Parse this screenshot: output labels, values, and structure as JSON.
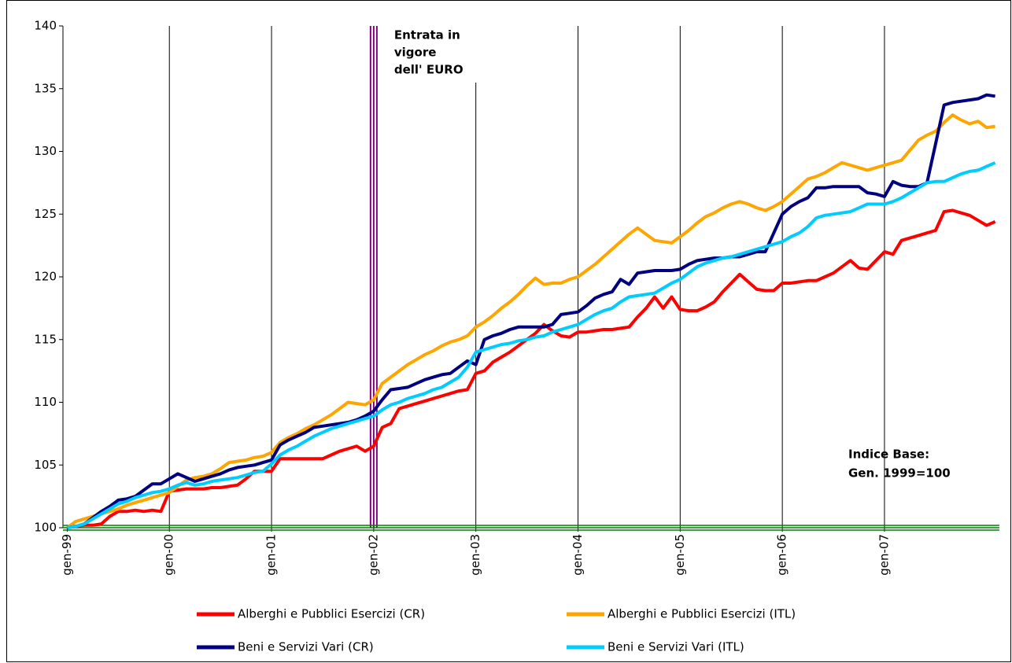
{
  "chart_data": {
    "type": "line",
    "categories": [
      "gen-99",
      null,
      null,
      null,
      null,
      null,
      null,
      null,
      null,
      null,
      null,
      null,
      "gen-00",
      null,
      null,
      null,
      null,
      null,
      null,
      null,
      null,
      null,
      null,
      null,
      "gen-01",
      null,
      null,
      null,
      null,
      null,
      null,
      null,
      null,
      null,
      null,
      null,
      "gen-02",
      null,
      null,
      null,
      null,
      null,
      null,
      null,
      null,
      null,
      null,
      null,
      "gen-03",
      null,
      null,
      null,
      null,
      null,
      null,
      null,
      null,
      null,
      null,
      null,
      "gen-04",
      null,
      null,
      null,
      null,
      null,
      null,
      null,
      null,
      null,
      null,
      null,
      "gen-05",
      null,
      null,
      null,
      null,
      null,
      null,
      null,
      null,
      null,
      null,
      null,
      "gen-06",
      null,
      null,
      null,
      null,
      null,
      null,
      null,
      null,
      null,
      null,
      null,
      "gen-07",
      null,
      null,
      null,
      null,
      null,
      null,
      null,
      null,
      null,
      null,
      null,
      null,
      null
    ],
    "series": [
      {
        "name": "Alberghi e Pubblici Esercizi (CR)",
        "color": "#ff0000",
        "values": [
          100,
          100.1,
          100.2,
          100.2,
          100.3,
          100.9,
          101.3,
          101.3,
          101.4,
          101.3,
          101.4,
          101.3,
          102.9,
          103,
          103.1,
          103.1,
          103.1,
          103.2,
          103.2,
          103.3,
          103.4,
          103.9,
          104.5,
          104.5,
          104.5,
          105.5,
          105.5,
          105.5,
          105.5,
          105.5,
          105.5,
          105.8,
          106.1,
          106.3,
          106.5,
          106.1,
          106.5,
          108,
          108.3,
          109.5,
          109.7,
          109.9,
          110.1,
          110.3,
          110.5,
          110.7,
          110.9,
          111,
          112.3,
          112.5,
          113.2,
          113.6,
          114,
          114.5,
          115,
          115.5,
          116.2,
          115.7,
          115.3,
          115.2,
          115.6,
          115.6,
          115.7,
          115.8,
          115.8,
          115.9,
          116,
          116.8,
          117.5,
          118.4,
          117.5,
          118.4,
          117.4,
          117.3,
          117.3,
          117.6,
          118,
          118.8,
          119.5,
          120.2,
          119.6,
          119,
          118.9,
          118.9,
          119.5,
          119.5,
          119.6,
          119.7,
          119.7,
          120,
          120.3,
          120.8,
          121.3,
          120.7,
          120.6,
          121.3,
          122,
          121.8,
          122.9,
          123.1,
          123.3,
          123.5,
          123.7,
          125.2,
          125.3,
          125.1,
          124.9,
          124.5,
          124.1,
          124.4
        ]
      },
      {
        "name": "Alberghi e Pubblici Esercizi (ITL)",
        "color": "#ffa500",
        "values": [
          100,
          100.5,
          100.7,
          100.9,
          101.1,
          101.3,
          101.5,
          101.8,
          102,
          102.2,
          102.4,
          102.6,
          102.8,
          103.3,
          103.8,
          104,
          104.1,
          104.3,
          104.7,
          105.2,
          105.3,
          105.4,
          105.6,
          105.7,
          106,
          106.8,
          107.2,
          107.5,
          107.9,
          108.2,
          108.6,
          109,
          109.5,
          110,
          109.9,
          109.8,
          110.2,
          111.5,
          112,
          112.5,
          113,
          113.4,
          113.8,
          114.1,
          114.5,
          114.8,
          115,
          115.3,
          116,
          116.4,
          116.9,
          117.5,
          118,
          118.6,
          119.3,
          119.9,
          119.4,
          119.5,
          119.5,
          119.8,
          120,
          120.5,
          121,
          121.6,
          122.2,
          122.8,
          123.4,
          123.9,
          123.4,
          122.9,
          122.8,
          122.7,
          123.2,
          123.7,
          124.3,
          124.8,
          125.1,
          125.5,
          125.8,
          126,
          125.8,
          125.5,
          125.3,
          125.6,
          126,
          126.6,
          127.2,
          127.8,
          128,
          128.3,
          128.7,
          129.1,
          128.9,
          128.7,
          128.5,
          128.7,
          128.9,
          129.1,
          129.3,
          130.1,
          130.9,
          131.3,
          131.6,
          132.3,
          132.9,
          132.5,
          132.2,
          132.4,
          131.9,
          132
        ]
      },
      {
        "name": "Beni e Servizi Vari (CR)",
        "color": "#000080",
        "values": [
          100,
          100.1,
          100.3,
          100.8,
          101.3,
          101.7,
          102.2,
          102.3,
          102.5,
          103,
          103.5,
          103.5,
          103.9,
          104.3,
          104,
          103.7,
          103.9,
          104.1,
          104.3,
          104.6,
          104.8,
          104.9,
          105,
          105.2,
          105.4,
          106.6,
          107,
          107.3,
          107.6,
          108,
          108.1,
          108.2,
          108.3,
          108.4,
          108.6,
          108.9,
          109.3,
          110.2,
          111,
          111.1,
          111.2,
          111.5,
          111.8,
          112,
          112.2,
          112.3,
          112.8,
          113.3,
          113,
          115,
          115.3,
          115.5,
          115.8,
          116,
          116,
          116,
          116,
          116.2,
          117,
          117.1,
          117.2,
          117.7,
          118.3,
          118.6,
          118.8,
          119.8,
          119.4,
          120.3,
          120.4,
          120.5,
          120.5,
          120.5,
          120.6,
          121,
          121.3,
          121.4,
          121.5,
          121.5,
          121.6,
          121.6,
          121.8,
          122,
          122,
          123.5,
          125,
          125.6,
          126,
          126.3,
          127.1,
          127.1,
          127.2,
          127.2,
          127.2,
          127.2,
          126.7,
          126.6,
          126.4,
          127.6,
          127.3,
          127.2,
          127.2,
          127.5,
          130.6,
          133.7,
          133.9,
          134,
          134.1,
          134.2,
          134.5,
          134.4
        ]
      },
      {
        "name": "Beni e Servizi Vari (ITL)",
        "color": "#00ccff",
        "values": [
          100,
          100.1,
          100.3,
          100.7,
          101.1,
          101.5,
          101.9,
          102.1,
          102.4,
          102.6,
          102.8,
          102.9,
          103.1,
          103.4,
          103.6,
          103.4,
          103.5,
          103.7,
          103.8,
          103.9,
          104,
          104.2,
          104.4,
          104.5,
          105.1,
          105.8,
          106.2,
          106.5,
          106.9,
          107.3,
          107.6,
          107.9,
          108.1,
          108.3,
          108.5,
          108.7,
          108.9,
          109.4,
          109.8,
          110,
          110.3,
          110.5,
          110.7,
          111,
          111.2,
          111.6,
          112,
          112.8,
          114,
          114.2,
          114.4,
          114.6,
          114.7,
          114.9,
          115,
          115.2,
          115.3,
          115.6,
          115.8,
          116,
          116.2,
          116.6,
          117,
          117.3,
          117.5,
          118,
          118.4,
          118.5,
          118.6,
          118.7,
          119.1,
          119.5,
          119.8,
          120.3,
          120.8,
          121.1,
          121.3,
          121.5,
          121.6,
          121.8,
          122,
          122.2,
          122.4,
          122.6,
          122.8,
          123.2,
          123.5,
          124,
          124.7,
          124.9,
          125,
          125.1,
          125.2,
          125.5,
          125.8,
          125.8,
          125.8,
          126,
          126.3,
          126.7,
          127.1,
          127.5,
          127.6,
          127.6,
          127.9,
          128.2,
          128.4,
          128.5,
          128.8,
          129.1
        ]
      }
    ],
    "ylim": [
      100,
      140
    ],
    "yticks": [
      100,
      105,
      110,
      115,
      120,
      125,
      130,
      135,
      140
    ],
    "grid": "x",
    "legend": "bottom",
    "annotations": [
      {
        "lines": [
          "Entrata in",
          "vigore",
          "dell' EURO"
        ],
        "color": "#800080",
        "x": "gen-02"
      },
      {
        "lines": [
          "Indice Base:",
          "Gen. 1999=100"
        ],
        "color": "#008000",
        "y": 100
      }
    ]
  }
}
